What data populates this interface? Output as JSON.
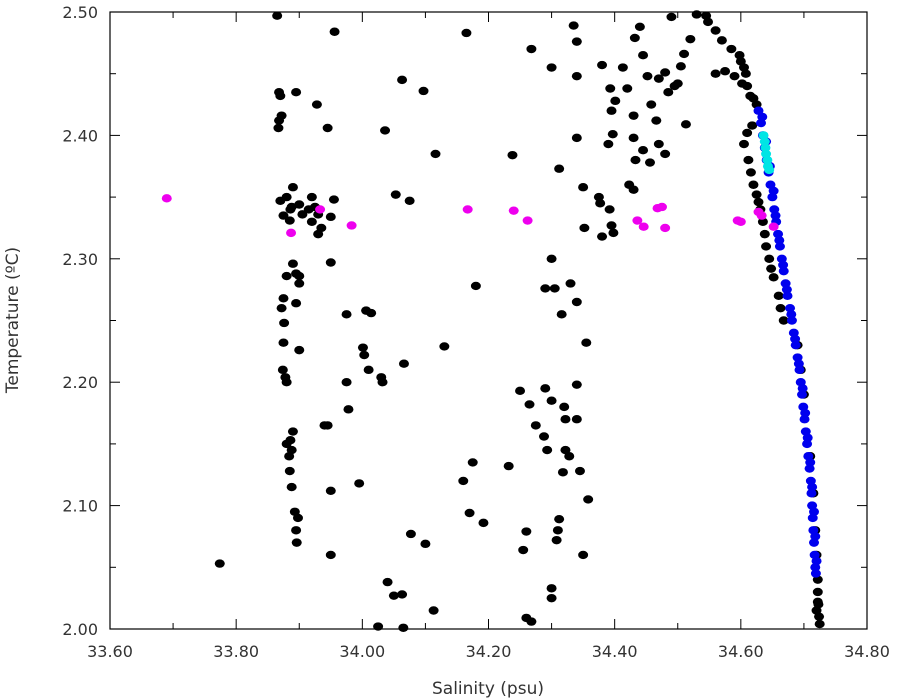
{
  "chart_data": {
    "type": "scatter",
    "xlabel": "Salinity (psu)",
    "ylabel": "Temperature (ºC)",
    "xlim": [
      33.6,
      34.8
    ],
    "ylim": [
      2.0,
      2.5
    ],
    "xticks": [
      "33.60",
      "33.80",
      "34.00",
      "34.20",
      "34.40",
      "34.60",
      "34.80"
    ],
    "yticks": [
      "2.00",
      "2.10",
      "2.20",
      "2.30",
      "2.40",
      "2.50"
    ],
    "grid": false,
    "series": [
      {
        "color": "#000000",
        "points": [
          [
            33.865,
            2.497
          ],
          [
            33.956,
            2.484
          ],
          [
            34.165,
            2.483
          ],
          [
            34.268,
            2.47
          ],
          [
            34.335,
            2.489
          ],
          [
            34.34,
            2.476
          ],
          [
            34.432,
            2.479
          ],
          [
            34.44,
            2.488
          ],
          [
            34.49,
            2.496
          ],
          [
            34.53,
            2.498
          ],
          [
            34.545,
            2.497
          ],
          [
            34.548,
            2.492
          ],
          [
            34.56,
            2.485
          ],
          [
            34.57,
            2.477
          ],
          [
            34.585,
            2.47
          ],
          [
            34.598,
            2.465
          ],
          [
            34.52,
            2.478
          ],
          [
            34.51,
            2.466
          ],
          [
            34.505,
            2.456
          ],
          [
            34.56,
            2.45
          ],
          [
            34.575,
            2.452
          ],
          [
            34.59,
            2.448
          ],
          [
            34.602,
            2.442
          ],
          [
            34.608,
            2.45
          ],
          [
            34.063,
            2.445
          ],
          [
            34.097,
            2.436
          ],
          [
            33.868,
            2.435
          ],
          [
            33.87,
            2.432
          ],
          [
            33.868,
            2.412
          ],
          [
            33.867,
            2.406
          ],
          [
            33.872,
            2.416
          ],
          [
            33.895,
            2.435
          ],
          [
            33.928,
            2.425
          ],
          [
            33.945,
            2.406
          ],
          [
            34.036,
            2.404
          ],
          [
            34.116,
            2.385
          ],
          [
            34.238,
            2.384
          ],
          [
            34.3,
            2.455
          ],
          [
            34.34,
            2.448
          ],
          [
            34.38,
            2.457
          ],
          [
            34.393,
            2.438
          ],
          [
            34.401,
            2.428
          ],
          [
            34.413,
            2.455
          ],
          [
            34.42,
            2.438
          ],
          [
            34.43,
            2.416
          ],
          [
            34.445,
            2.465
          ],
          [
            34.452,
            2.448
          ],
          [
            34.458,
            2.425
          ],
          [
            34.47,
            2.446
          ],
          [
            34.48,
            2.451
          ],
          [
            34.485,
            2.435
          ],
          [
            34.495,
            2.44
          ],
          [
            34.5,
            2.442
          ],
          [
            34.513,
            2.409
          ],
          [
            34.466,
            2.412
          ],
          [
            34.47,
            2.393
          ],
          [
            34.48,
            2.385
          ],
          [
            34.456,
            2.378
          ],
          [
            34.445,
            2.388
          ],
          [
            34.43,
            2.398
          ],
          [
            34.397,
            2.401
          ],
          [
            34.39,
            2.393
          ],
          [
            34.395,
            2.42
          ],
          [
            34.34,
            2.398
          ],
          [
            34.312,
            2.373
          ],
          [
            34.35,
            2.358
          ],
          [
            34.375,
            2.35
          ],
          [
            34.433,
            2.38
          ],
          [
            34.43,
            2.356
          ],
          [
            34.423,
            2.36
          ],
          [
            34.392,
            2.34
          ],
          [
            34.377,
            2.345
          ],
          [
            34.352,
            2.325
          ],
          [
            34.38,
            2.318
          ],
          [
            34.395,
            2.327
          ],
          [
            34.398,
            2.321
          ],
          [
            33.87,
            2.347
          ],
          [
            33.875,
            2.335
          ],
          [
            33.88,
            2.35
          ],
          [
            33.886,
            2.34
          ],
          [
            33.89,
            2.358
          ],
          [
            33.888,
            2.342
          ],
          [
            33.885,
            2.331
          ],
          [
            33.9,
            2.344
          ],
          [
            33.905,
            2.336
          ],
          [
            33.92,
            2.35
          ],
          [
            33.925,
            2.342
          ],
          [
            33.93,
            2.336
          ],
          [
            33.92,
            2.33
          ],
          [
            33.915,
            2.34
          ],
          [
            33.935,
            2.325
          ],
          [
            33.93,
            2.32
          ],
          [
            33.955,
            2.348
          ],
          [
            33.95,
            2.334
          ],
          [
            34.053,
            2.352
          ],
          [
            34.075,
            2.347
          ],
          [
            33.89,
            2.296
          ],
          [
            33.895,
            2.288
          ],
          [
            33.9,
            2.286
          ],
          [
            33.9,
            2.28
          ],
          [
            33.895,
            2.264
          ],
          [
            33.88,
            2.286
          ],
          [
            33.875,
            2.268
          ],
          [
            33.872,
            2.26
          ],
          [
            33.876,
            2.248
          ],
          [
            33.875,
            2.232
          ],
          [
            33.9,
            2.226
          ],
          [
            33.874,
            2.21
          ],
          [
            33.878,
            2.204
          ],
          [
            33.88,
            2.2
          ],
          [
            33.886,
            2.153
          ],
          [
            33.888,
            2.145
          ],
          [
            33.89,
            2.16
          ],
          [
            33.88,
            2.15
          ],
          [
            33.884,
            2.14
          ],
          [
            33.885,
            2.128
          ],
          [
            33.888,
            2.115
          ],
          [
            33.893,
            2.095
          ],
          [
            33.898,
            2.09
          ],
          [
            33.895,
            2.08
          ],
          [
            33.896,
            2.07
          ],
          [
            33.95,
            2.297
          ],
          [
            33.975,
            2.255
          ],
          [
            34.006,
            2.258
          ],
          [
            34.014,
            2.256
          ],
          [
            34.001,
            2.228
          ],
          [
            34.003,
            2.222
          ],
          [
            34.01,
            2.21
          ],
          [
            34.03,
            2.204
          ],
          [
            34.032,
            2.2
          ],
          [
            33.975,
            2.2
          ],
          [
            33.978,
            2.178
          ],
          [
            33.94,
            2.165
          ],
          [
            33.945,
            2.165
          ],
          [
            33.95,
            2.112
          ],
          [
            33.995,
            2.118
          ],
          [
            33.95,
            2.06
          ],
          [
            33.774,
            2.053
          ],
          [
            34.13,
            2.229
          ],
          [
            34.066,
            2.215
          ],
          [
            34.18,
            2.278
          ],
          [
            34.16,
            2.12
          ],
          [
            34.17,
            2.094
          ],
          [
            34.175,
            2.135
          ],
          [
            34.192,
            2.086
          ],
          [
            34.232,
            2.132
          ],
          [
            34.25,
            2.193
          ],
          [
            34.265,
            2.182
          ],
          [
            34.275,
            2.165
          ],
          [
            34.288,
            2.156
          ],
          [
            34.293,
            2.145
          ],
          [
            34.29,
            2.195
          ],
          [
            34.3,
            2.185
          ],
          [
            34.29,
            2.276
          ],
          [
            34.3,
            2.3
          ],
          [
            34.305,
            2.276
          ],
          [
            34.316,
            2.255
          ],
          [
            34.33,
            2.28
          ],
          [
            34.34,
            2.265
          ],
          [
            34.355,
            2.232
          ],
          [
            34.322,
            2.145
          ],
          [
            34.328,
            2.14
          ],
          [
            34.318,
            2.127
          ],
          [
            34.32,
            2.18
          ],
          [
            34.322,
            2.17
          ],
          [
            34.34,
            2.198
          ],
          [
            34.34,
            2.17
          ],
          [
            34.345,
            2.128
          ],
          [
            34.358,
            2.105
          ],
          [
            34.35,
            2.06
          ],
          [
            34.26,
            2.079
          ],
          [
            34.255,
            2.064
          ],
          [
            34.312,
            2.089
          ],
          [
            34.31,
            2.08
          ],
          [
            34.308,
            2.072
          ],
          [
            34.3,
            2.033
          ],
          [
            34.3,
            2.025
          ],
          [
            34.26,
            2.009
          ],
          [
            34.268,
            2.006
          ],
          [
            34.04,
            2.038
          ],
          [
            34.05,
            2.027
          ],
          [
            34.063,
            2.028
          ],
          [
            34.077,
            2.077
          ],
          [
            34.1,
            2.069
          ],
          [
            34.113,
            2.015
          ],
          [
            34.025,
            2.002
          ],
          [
            34.065,
            2.001
          ],
          [
            34.6,
            2.46
          ],
          [
            34.605,
            2.455
          ],
          [
            34.61,
            2.44
          ],
          [
            34.615,
            2.432
          ],
          [
            34.62,
            2.43
          ],
          [
            34.625,
            2.425
          ],
          [
            34.618,
            2.408
          ],
          [
            34.61,
            2.402
          ],
          [
            34.605,
            2.393
          ],
          [
            34.612,
            2.38
          ],
          [
            34.616,
            2.37
          ],
          [
            34.62,
            2.36
          ],
          [
            34.625,
            2.352
          ],
          [
            34.628,
            2.346
          ],
          [
            34.631,
            2.34
          ],
          [
            34.635,
            2.33
          ],
          [
            34.638,
            2.32
          ],
          [
            34.64,
            2.31
          ],
          [
            34.645,
            2.3
          ],
          [
            34.648,
            2.292
          ],
          [
            34.652,
            2.285
          ],
          [
            34.66,
            2.27
          ],
          [
            34.663,
            2.26
          ],
          [
            34.668,
            2.25
          ],
          [
            34.69,
            2.23
          ],
          [
            34.695,
            2.21
          ],
          [
            34.7,
            2.19
          ],
          [
            34.71,
            2.14
          ],
          [
            34.715,
            2.11
          ],
          [
            34.718,
            2.08
          ],
          [
            34.72,
            2.06
          ],
          [
            34.722,
            2.04
          ],
          [
            34.722,
            2.03
          ],
          [
            34.723,
            2.02
          ],
          [
            34.724,
            2.01
          ],
          [
            34.725,
            2.004
          ],
          [
            34.72,
            2.015
          ],
          [
            34.722,
            2.022
          ]
        ]
      },
      {
        "color": "#0000ee",
        "points": [
          [
            34.628,
            2.42
          ],
          [
            34.632,
            2.41
          ],
          [
            34.635,
            2.4
          ],
          [
            34.638,
            2.39
          ],
          [
            34.641,
            2.38
          ],
          [
            34.644,
            2.37
          ],
          [
            34.647,
            2.36
          ],
          [
            34.65,
            2.35
          ],
          [
            34.653,
            2.34
          ],
          [
            34.656,
            2.33
          ],
          [
            34.659,
            2.32
          ],
          [
            34.662,
            2.31
          ],
          [
            34.665,
            2.3
          ],
          [
            34.668,
            2.29
          ],
          [
            34.671,
            2.28
          ],
          [
            34.674,
            2.27
          ],
          [
            34.678,
            2.26
          ],
          [
            34.681,
            2.25
          ],
          [
            34.684,
            2.24
          ],
          [
            34.687,
            2.23
          ],
          [
            34.69,
            2.22
          ],
          [
            34.693,
            2.21
          ],
          [
            34.695,
            2.2
          ],
          [
            34.697,
            2.19
          ],
          [
            34.699,
            2.18
          ],
          [
            34.701,
            2.17
          ],
          [
            34.703,
            2.16
          ],
          [
            34.705,
            2.15
          ],
          [
            34.707,
            2.14
          ],
          [
            34.709,
            2.13
          ],
          [
            34.711,
            2.12
          ],
          [
            34.712,
            2.11
          ],
          [
            34.713,
            2.1
          ],
          [
            34.714,
            2.09
          ],
          [
            34.715,
            2.08
          ],
          [
            34.716,
            2.07
          ],
          [
            34.717,
            2.06
          ],
          [
            34.718,
            2.05
          ],
          [
            34.719,
            2.045
          ],
          [
            34.634,
            2.415
          ],
          [
            34.64,
            2.395
          ],
          [
            34.646,
            2.375
          ],
          [
            34.652,
            2.355
          ],
          [
            34.655,
            2.335
          ],
          [
            34.661,
            2.315
          ],
          [
            34.667,
            2.295
          ],
          [
            34.673,
            2.275
          ],
          [
            34.68,
            2.255
          ],
          [
            34.686,
            2.235
          ],
          [
            34.692,
            2.215
          ],
          [
            34.698,
            2.195
          ],
          [
            34.702,
            2.175
          ],
          [
            34.706,
            2.155
          ],
          [
            34.71,
            2.135
          ],
          [
            34.713,
            2.115
          ],
          [
            34.716,
            2.095
          ],
          [
            34.718,
            2.075
          ],
          [
            34.72,
            2.055
          ]
        ]
      },
      {
        "color": "#00e5e5",
        "points": [
          [
            34.636,
            2.4
          ],
          [
            34.638,
            2.395
          ],
          [
            34.639,
            2.39
          ],
          [
            34.64,
            2.385
          ],
          [
            34.642,
            2.38
          ],
          [
            34.643,
            2.375
          ],
          [
            34.645,
            2.372
          ]
        ]
      },
      {
        "color": "#ee00ee",
        "points": [
          [
            33.69,
            2.349
          ],
          [
            33.887,
            2.321
          ],
          [
            33.933,
            2.34
          ],
          [
            33.983,
            2.327
          ],
          [
            34.167,
            2.34
          ],
          [
            34.24,
            2.339
          ],
          [
            34.262,
            2.331
          ],
          [
            34.436,
            2.331
          ],
          [
            34.446,
            2.326
          ],
          [
            34.468,
            2.341
          ],
          [
            34.475,
            2.342
          ],
          [
            34.48,
            2.325
          ],
          [
            34.595,
            2.331
          ],
          [
            34.6,
            2.33
          ],
          [
            34.628,
            2.338
          ],
          [
            34.633,
            2.335
          ],
          [
            34.652,
            2.326
          ]
        ]
      }
    ]
  }
}
